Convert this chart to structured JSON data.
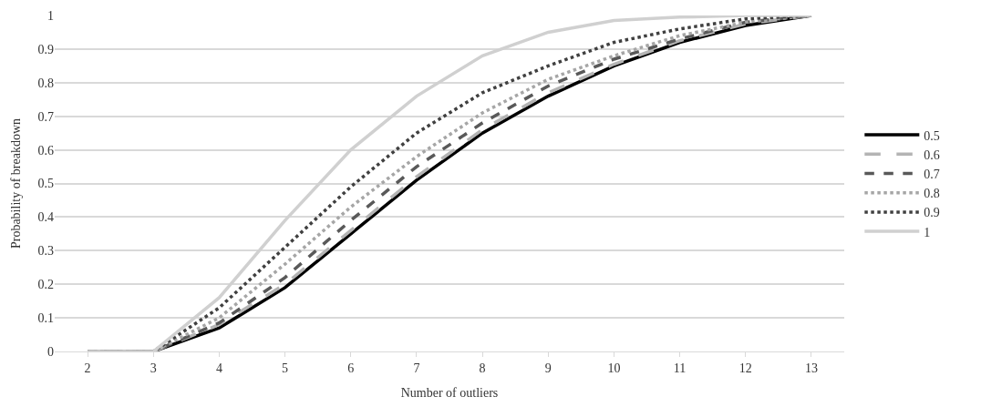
{
  "chart_data": {
    "type": "line",
    "xlabel": "Number of outliers",
    "ylabel": "Probability of breakdown",
    "categories": [
      "2",
      "3",
      "4",
      "5",
      "6",
      "7",
      "8",
      "9",
      "10",
      "11",
      "12",
      "13"
    ],
    "ylim": [
      0,
      1
    ],
    "yticks": [
      0,
      0.1,
      0.2,
      0.3,
      0.4,
      0.5,
      0.6,
      0.7,
      0.8,
      0.9,
      1
    ],
    "grid": "y",
    "legend": "right",
    "marker": "none",
    "series": [
      {
        "name": "0.5",
        "color": "#000000",
        "line_style": "solid",
        "values": [
          0,
          0,
          0.07,
          0.19,
          0.35,
          0.51,
          0.65,
          0.76,
          0.85,
          0.92,
          0.97,
          1
        ]
      },
      {
        "name": "0.6",
        "color": "#b4b4b4",
        "line_style": "longdash",
        "values": [
          0,
          0,
          0.08,
          0.2,
          0.36,
          0.52,
          0.66,
          0.77,
          0.855,
          0.925,
          0.975,
          1
        ]
      },
      {
        "name": "0.7",
        "color": "#595959",
        "line_style": "dashed",
        "values": [
          0,
          0,
          0.085,
          0.22,
          0.39,
          0.55,
          0.68,
          0.79,
          0.87,
          0.93,
          0.98,
          1
        ]
      },
      {
        "name": "0.8",
        "color": "#a6a6a6",
        "line_style": "dotted",
        "values": [
          0,
          0,
          0.1,
          0.26,
          0.43,
          0.58,
          0.71,
          0.81,
          0.88,
          0.94,
          0.98,
          1
        ]
      },
      {
        "name": "0.9",
        "color": "#404040",
        "line_style": "dotted",
        "values": [
          0,
          0,
          0.13,
          0.31,
          0.49,
          0.65,
          0.77,
          0.85,
          0.92,
          0.96,
          0.99,
          1
        ]
      },
      {
        "name": "1",
        "color": "#d0d0d0",
        "line_style": "solid",
        "values": [
          0,
          0,
          0.16,
          0.39,
          0.6,
          0.76,
          0.88,
          0.95,
          0.985,
          0.995,
          1,
          1
        ]
      }
    ]
  }
}
